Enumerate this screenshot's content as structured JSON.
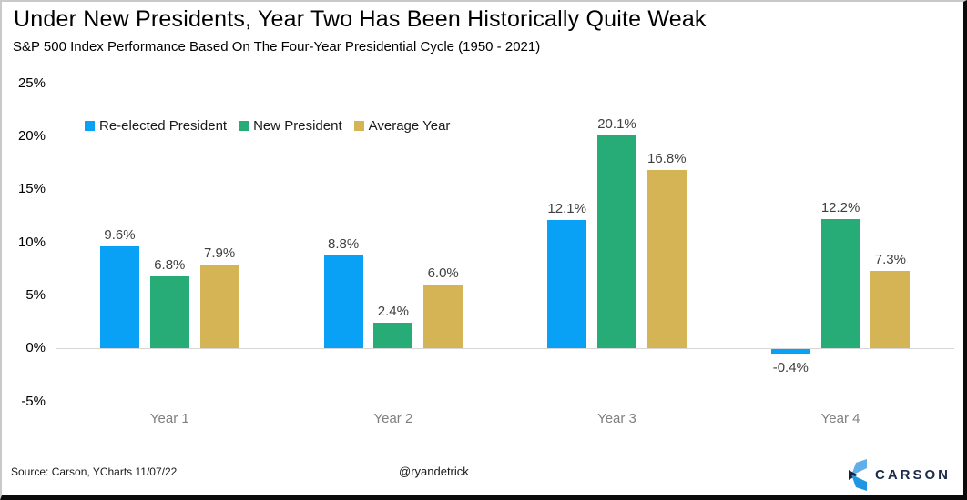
{
  "title": "Under New Presidents, Year Two Has Been Historically Quite Weak",
  "subtitle": "S&P 500 Index Performance Based On The Four-Year Presidential Cycle (1950 - 2021)",
  "chart_data": {
    "type": "bar",
    "categories": [
      "Year 1",
      "Year 2",
      "Year 3",
      "Year 4"
    ],
    "series": [
      {
        "name": "Re-elected President",
        "color": "#09a1f6",
        "values": [
          9.6,
          8.8,
          12.1,
          -0.4
        ],
        "value_labels": [
          "9.6%",
          "8.8%",
          "12.1%",
          "-0.4%"
        ]
      },
      {
        "name": "New President",
        "color": "#27ab77",
        "values": [
          6.8,
          2.4,
          20.1,
          12.2
        ],
        "value_labels": [
          "6.8%",
          "2.4%",
          "20.1%",
          "12.2%"
        ]
      },
      {
        "name": "Average Year",
        "color": "#d5b456",
        "values": [
          7.9,
          6.0,
          16.8,
          7.3
        ],
        "value_labels": [
          "7.9%",
          "6.0%",
          "16.8%",
          "7.3%"
        ]
      }
    ],
    "y_ticks": [
      25,
      20,
      15,
      10,
      5,
      0,
      -5
    ],
    "y_tick_labels": [
      "25%",
      "20%",
      "15%",
      "10%",
      "5%",
      "0%",
      "-5%"
    ],
    "ylim": [
      -7.5,
      25
    ],
    "value_suffix": "%",
    "grid": "zero-line-only",
    "legend_position": "top-left",
    "xlabel": "",
    "ylabel": ""
  },
  "footer": {
    "source": "Source: Carson, YCharts 11/07/22",
    "handle": "@ryandetrick",
    "logo_text": "CARSON"
  },
  "colors": {
    "value_label": "#404040",
    "category_label": "#808080",
    "zero_line": "#d6d6d6",
    "logo_navy": "#1c2b4a",
    "logo_light_blue": "#62aee8",
    "logo_mid_blue": "#2196e0"
  }
}
